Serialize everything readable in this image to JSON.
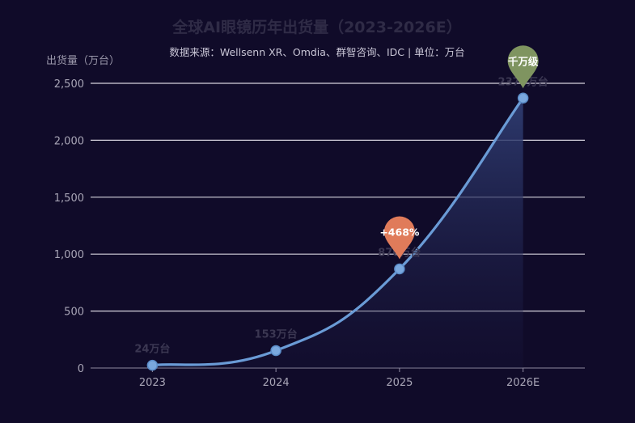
{
  "chart_data": {
    "type": "area",
    "title": "全球AI眼镜历年出货量（2023-2026E）",
    "subtitle": "数据来源：Wellsenn XR、Omdia、群智咨询、IDC | 单位：万台",
    "ylabel": "出货量（万台）",
    "xlabel": "",
    "categories": [
      "2023",
      "2024",
      "2025",
      "2026E"
    ],
    "values": [
      24,
      153,
      870,
      2370
    ],
    "data_labels": [
      "24万台",
      "153万台",
      "870万台",
      "2370万台"
    ],
    "ylim": [
      0,
      2500
    ],
    "yticks": [
      0,
      500,
      1000,
      1500,
      2000,
      2500
    ],
    "ytick_labels": [
      "0",
      "500",
      "1,000",
      "1,500",
      "2,000",
      "2,500"
    ],
    "grid": true,
    "smooth": true,
    "annotations": [
      {
        "category": "2025",
        "text": "+468%",
        "color": "#e07b5a"
      },
      {
        "category": "2026E",
        "text": "千万级",
        "color": "#7f9460"
      }
    ],
    "colors": {
      "line": "#6a9bd6",
      "marker": "#7aa8de",
      "area_top": "#2e3b6e",
      "background": "#100b29"
    }
  }
}
